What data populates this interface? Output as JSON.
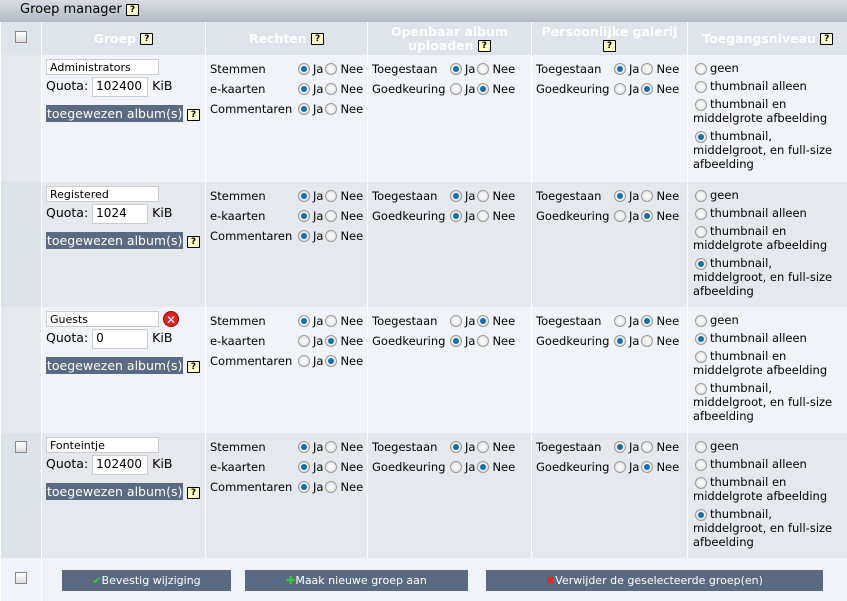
{
  "title": "Groep manager",
  "help": "?",
  "headers": {
    "group": "Groep",
    "rights": "Rechten",
    "upload": "Openbaar album uploaden",
    "personal": "Persoonlijke galerij",
    "access": "Toegangsniveau"
  },
  "labels": {
    "quota": "Quota:",
    "unit": "KiB",
    "assigned": "toegewezen album(s)",
    "yes": "Ja",
    "no": "Nee",
    "votes": "Stemmen",
    "ecards": "e-kaarten",
    "comments": "Commentaren",
    "allowed": "Toegestaan",
    "approval": "Goedkeuring"
  },
  "access_options": [
    "geen",
    "thumbnail alleen",
    "thumbnail en middelgrote afbeelding",
    "thumbnail, middelgroot, en full-size afbeelding"
  ],
  "groups": [
    {
      "name": "Administrators",
      "quota": "102400",
      "checkbox": false,
      "deletable": false,
      "votes": true,
      "ecards": true,
      "comments": true,
      "upload_allowed": true,
      "upload_approval": false,
      "personal_allowed": true,
      "personal_approval": false,
      "access": 3
    },
    {
      "name": "Registered",
      "quota": "1024",
      "checkbox": false,
      "deletable": false,
      "votes": true,
      "ecards": true,
      "comments": true,
      "upload_allowed": true,
      "upload_approval": true,
      "personal_allowed": true,
      "personal_approval": false,
      "access": 3
    },
    {
      "name": "Guests",
      "quota": "0",
      "checkbox": false,
      "deletable": true,
      "votes": true,
      "ecards": false,
      "comments": false,
      "upload_allowed": false,
      "upload_approval": true,
      "personal_allowed": false,
      "personal_approval": true,
      "access": 1
    },
    {
      "name": "Fonteintje",
      "quota": "102400",
      "checkbox": true,
      "deletable": false,
      "votes": true,
      "ecards": true,
      "comments": true,
      "upload_allowed": true,
      "upload_approval": false,
      "personal_allowed": true,
      "personal_approval": false,
      "access": 3
    }
  ],
  "buttons": {
    "confirm": "Bevestig wijziging",
    "create": "Maak nieuwe groep aan",
    "delete": "Verwijder de geselecteerde groep(en)"
  }
}
